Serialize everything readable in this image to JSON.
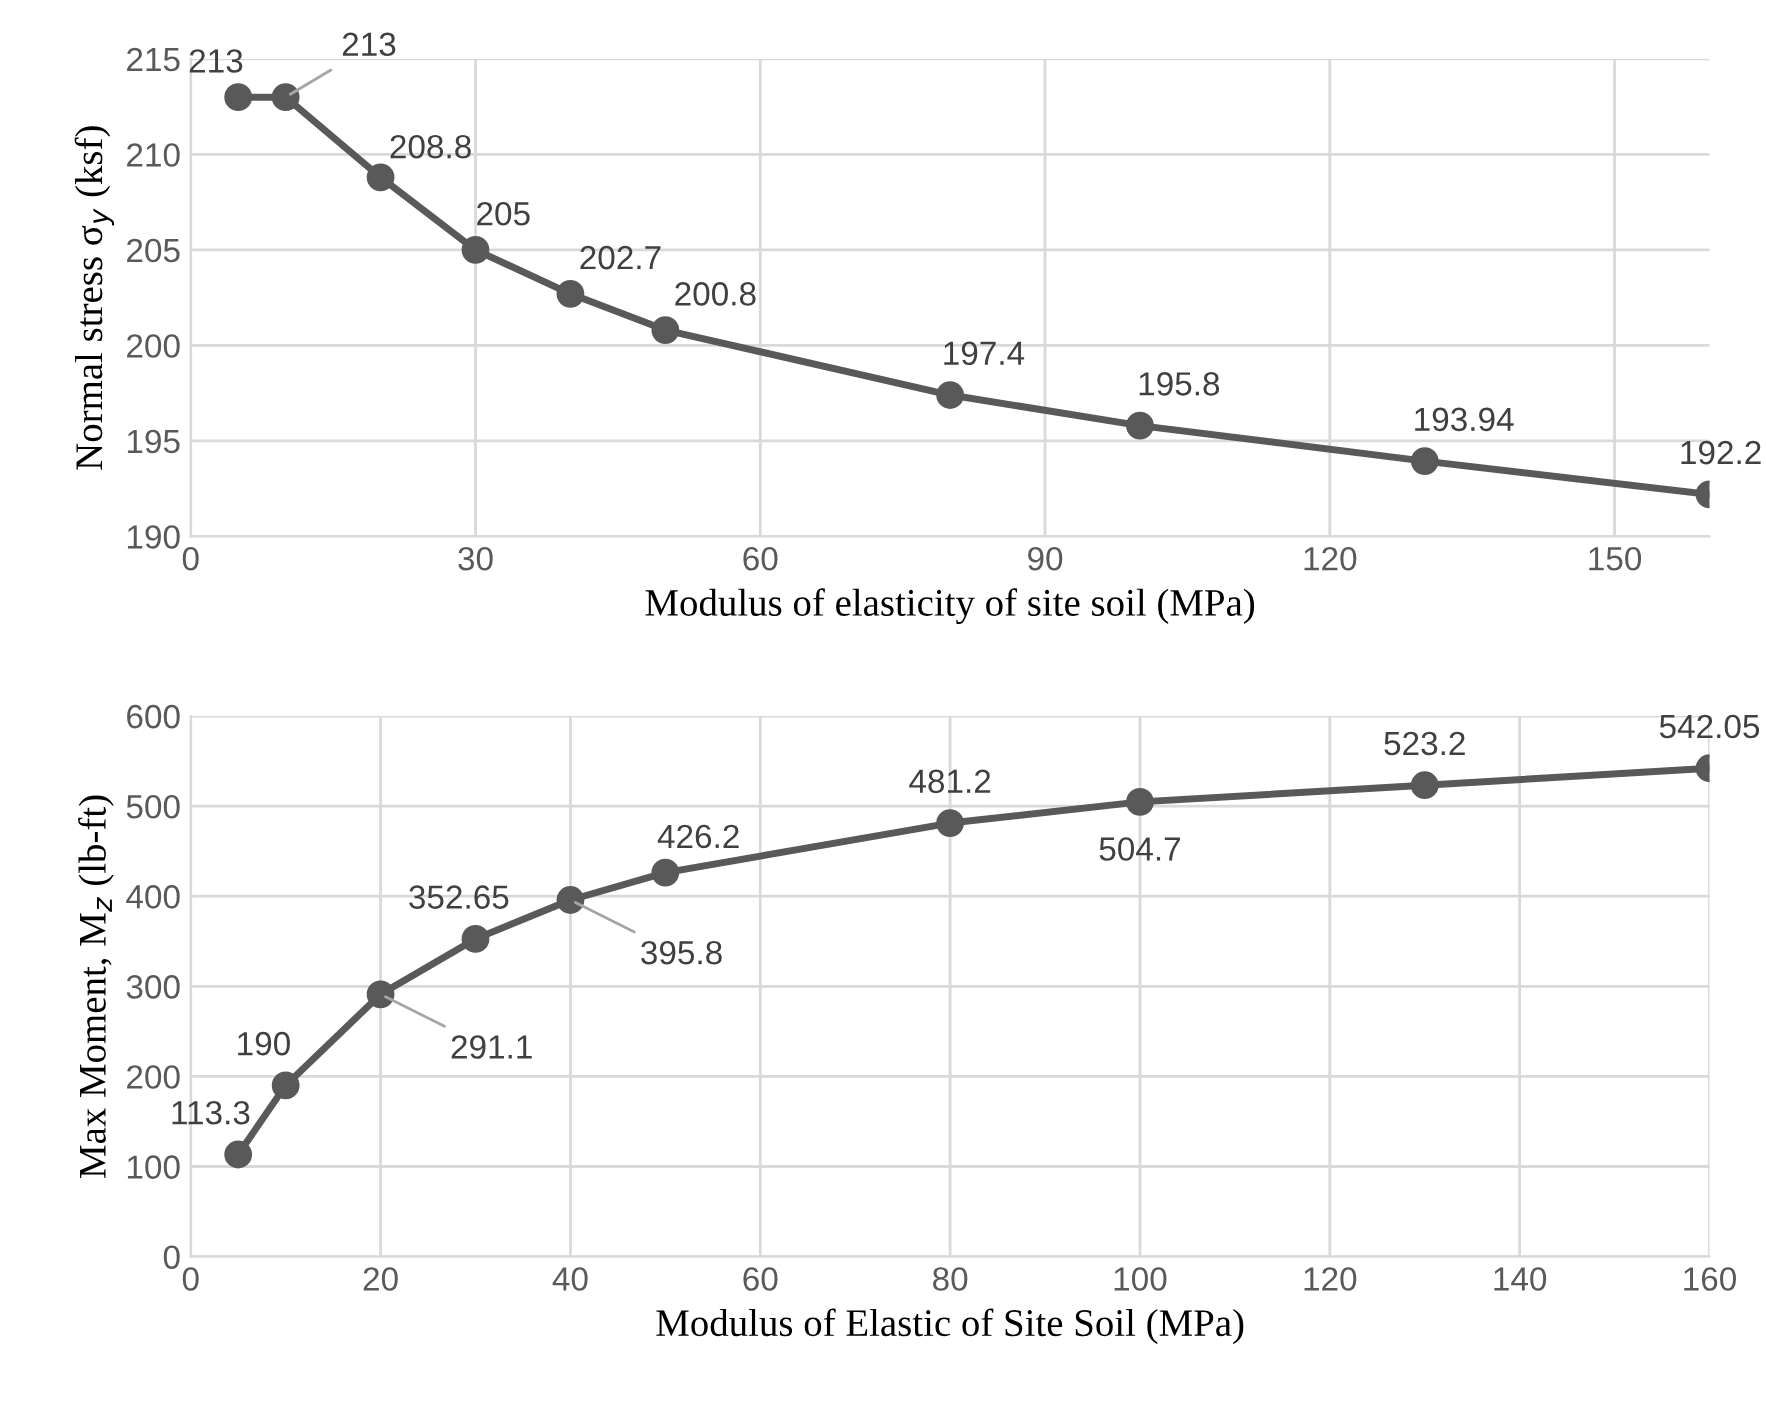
{
  "chart_data": [
    {
      "type": "line",
      "xlabel": "Modulus of elasticity of site soil (MPa)",
      "ylabel": "Normal stress σ$_{y}$ (ksf)",
      "x": [
        5,
        10,
        20,
        30,
        40,
        50,
        80,
        100,
        130,
        160
      ],
      "series": [
        {
          "color": "#595959",
          "values": [
            213,
            213,
            208.8,
            205,
            202.7,
            200.8,
            197.4,
            195.8,
            193.94,
            192.2
          ]
        }
      ],
      "xlim": [
        0,
        160
      ],
      "xticks": [
        0,
        30,
        60,
        90,
        120,
        150
      ],
      "ylim": [
        190,
        215
      ],
      "yticks": [
        190,
        195,
        200,
        205,
        210,
        215
      ],
      "grid": true,
      "marker": "circle",
      "line_style": "solid",
      "data_labels": true
    },
    {
      "type": "line",
      "xlabel": "Modulus of Elastic of Site Soil (MPa)",
      "ylabel": "Max Moment, M$_{z}$ (lb-ft)",
      "x": [
        5,
        10,
        20,
        30,
        40,
        50,
        80,
        100,
        130,
        160
      ],
      "series": [
        {
          "color": "#595959",
          "values": [
            113.3,
            190,
            291.1,
            352.65,
            395.8,
            426.2,
            481.2,
            504.7,
            523.2,
            542.05
          ]
        }
      ],
      "xlim": [
        0,
        160
      ],
      "xticks": [
        0,
        20,
        40,
        60,
        80,
        100,
        120,
        140,
        160
      ],
      "ylim": [
        0,
        600
      ],
      "yticks": [
        0,
        100,
        200,
        300,
        400,
        500,
        600
      ],
      "grid": true,
      "marker": "circle",
      "line_style": "solid",
      "data_labels": true
    }
  ]
}
